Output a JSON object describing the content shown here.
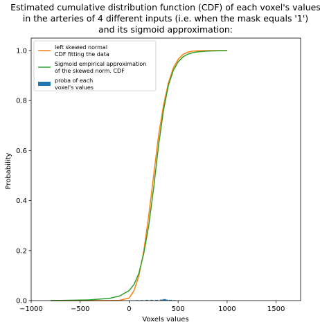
{
  "chart_data": {
    "type": "line",
    "title_lines": [
      "Estimated cumulative distribution function (CDF) of each voxel's values",
      "in the arteries of 4 different inputs (i.e. when the mask equals '1')",
      "and its sigmoid approximation:"
    ],
    "xlabel": "Voxels values",
    "ylabel": "Probability",
    "xlim": [
      -1000,
      1750
    ],
    "ylim": [
      0,
      1.05
    ],
    "xticks": [
      -1000,
      -500,
      0,
      500,
      1000,
      1500
    ],
    "xtick_labels": [
      "−1000",
      "−500",
      "0",
      "500",
      "1000",
      "1500"
    ],
    "yticks": [
      0,
      0.2,
      0.4,
      0.6,
      0.8,
      1.0
    ],
    "ytick_labels": [
      "0.0",
      "0.2",
      "0.4",
      "0.6",
      "0.8",
      "1.0"
    ],
    "grid": false,
    "legend_position": "top-left",
    "series": [
      {
        "name": "left skewed normal\nCDF fitting the data",
        "kind": "line",
        "color": "#ff7f0e",
        "x": [
          -800,
          -400,
          -200,
          -100,
          0,
          50,
          100,
          150,
          200,
          250,
          300,
          350,
          400,
          450,
          500,
          550,
          600,
          650,
          700,
          800,
          1000
        ],
        "y": [
          0.0,
          0.0,
          0.0,
          0.001,
          0.01,
          0.04,
          0.1,
          0.2,
          0.34,
          0.5,
          0.66,
          0.78,
          0.87,
          0.93,
          0.965,
          0.985,
          0.994,
          0.998,
          0.999,
          1.0,
          1.0
        ]
      },
      {
        "name": "Sigmoid empirical approximation\nof the skewed norm. CDF",
        "kind": "line",
        "color": "#2ca02c",
        "x": [
          -800,
          -400,
          -200,
          -100,
          0,
          50,
          100,
          150,
          200,
          250,
          300,
          350,
          400,
          450,
          500,
          550,
          600,
          650,
          700,
          800,
          1000
        ],
        "y": [
          0.0,
          0.003,
          0.009,
          0.018,
          0.04,
          0.065,
          0.11,
          0.19,
          0.3,
          0.45,
          0.62,
          0.76,
          0.86,
          0.92,
          0.955,
          0.975,
          0.986,
          0.992,
          0.995,
          0.998,
          1.0
        ]
      },
      {
        "name": "proba of each\nvoxel's values",
        "kind": "bar",
        "color": "#1f77b4",
        "x": [
          30,
          80,
          130,
          180,
          230,
          280,
          330,
          360,
          380,
          420,
          460
        ],
        "y": [
          0.001,
          0.002,
          0.002,
          0.003,
          0.003,
          0.003,
          0.004,
          0.006,
          0.004,
          0.003,
          0.002
        ],
        "bar_width": 30
      }
    ]
  }
}
